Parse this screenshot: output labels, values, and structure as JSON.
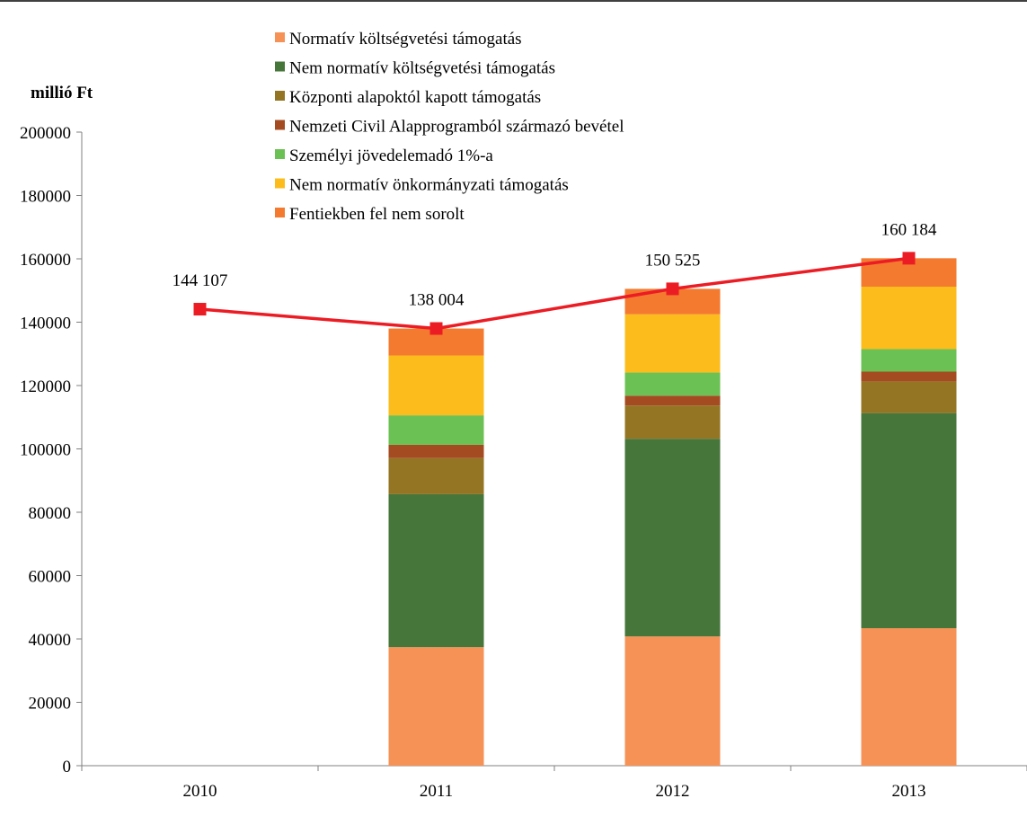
{
  "chart_data": {
    "type": "bar",
    "stacked": true,
    "ylabel": "millió  Ft",
    "ylim": [
      0,
      200000
    ],
    "yticks": [
      0,
      20000,
      40000,
      60000,
      80000,
      100000,
      120000,
      140000,
      160000,
      180000,
      200000
    ],
    "categories": [
      "2010",
      "2011",
      "2012",
      "2013"
    ],
    "series": [
      {
        "name": "Normatív költségvetési támogatás",
        "color": "#F79257",
        "values": [
          null,
          37400,
          40800,
          43400
        ]
      },
      {
        "name": "Nem normatív költségvetési támogatás",
        "color": "#46763A",
        "values": [
          null,
          48300,
          62400,
          67900
        ]
      },
      {
        "name": "Központi alapoktól kapott támogatás",
        "color": "#947524",
        "values": [
          null,
          11400,
          10500,
          10000
        ]
      },
      {
        "name": "Nemzeti Civil Alapprogramból származó bevétel",
        "color": "#A44B22",
        "values": [
          null,
          4200,
          3100,
          3100
        ]
      },
      {
        "name": "Személyi jövedelemadó 1%-a",
        "color": "#6CC154",
        "values": [
          null,
          9300,
          7300,
          7100
        ]
      },
      {
        "name": "Nem normatív önkormányzati támogatás",
        "color": "#FCBC1C",
        "values": [
          null,
          18900,
          18400,
          19700
        ]
      },
      {
        "name": "Fentiekben fel nem sorolt",
        "color": "#F47A30",
        "values": [
          null,
          8500,
          8025,
          8984
        ]
      }
    ],
    "total_line": {
      "color": "#EC1C24",
      "values": [
        144107,
        138004,
        150525,
        160184
      ],
      "labels": [
        "144 107",
        "138 004",
        "150 525",
        "160 184"
      ]
    },
    "legend_position": "top-center"
  }
}
